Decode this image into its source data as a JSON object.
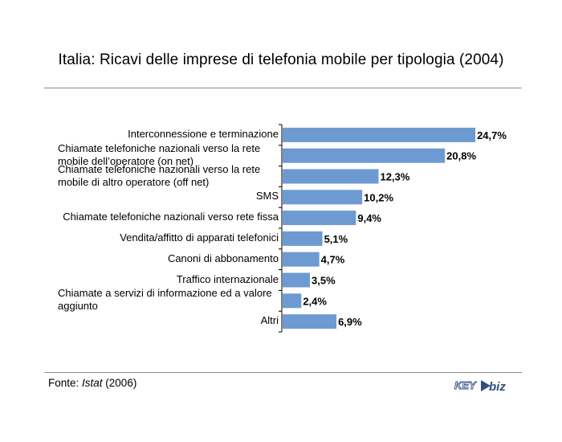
{
  "chart_data": {
    "type": "bar",
    "orientation": "horizontal",
    "title": "Italia: Ricavi delle imprese di telefonia mobile per tipologia (2004)",
    "categories": [
      "Interconnessione e terminazione",
      "Chiamate telefoniche nazionali verso la rete mobile dell’operatore (on net)",
      "Chiamate telefoniche nazionali verso la rete mobile di altro operatore (off net)",
      "SMS",
      "Chiamate telefoniche nazionali verso rete fissa",
      "Vendita/affitto di apparati telefonici",
      "Canoni di abbonamento",
      "Traffico internazionale",
      "Chiamate a servizi di informazione ed a valore aggiunto",
      "Altri"
    ],
    "category_lines": [
      [
        "Interconnessione e terminazione"
      ],
      [
        "Chiamate telefoniche nazionali verso la rete",
        "mobile dell’operatore (on net)"
      ],
      [
        "Chiamate telefoniche nazionali verso la rete",
        "mobile di altro operatore (off net)"
      ],
      [
        "SMS"
      ],
      [
        "Chiamate telefoniche nazionali verso rete fissa"
      ],
      [
        "Vendita/affitto di apparati telefonici"
      ],
      [
        "Canoni di abbonamento"
      ],
      [
        "Traffico internazionale"
      ],
      [
        "Chiamate a servizi di informazione ed a valore",
        "aggiunto"
      ],
      [
        "Altri"
      ]
    ],
    "values": [
      24.7,
      20.8,
      12.3,
      10.2,
      9.4,
      5.1,
      4.7,
      3.5,
      2.4,
      6.9
    ],
    "value_labels": [
      "24,7%",
      "20,8%",
      "12,3%",
      "10,2%",
      "9,4%",
      "5,1%",
      "4,7%",
      "3,5%",
      "2,4%",
      "6,9%"
    ],
    "xlim": [
      0,
      25
    ],
    "grid": false,
    "bar_color": "#6d9bd1"
  },
  "footer": {
    "source_prefix": "Fonte: ",
    "source_name": "Istat",
    "source_year": " (2006)",
    "logo_text_1": "KEY",
    "logo_text_2": "biz"
  }
}
